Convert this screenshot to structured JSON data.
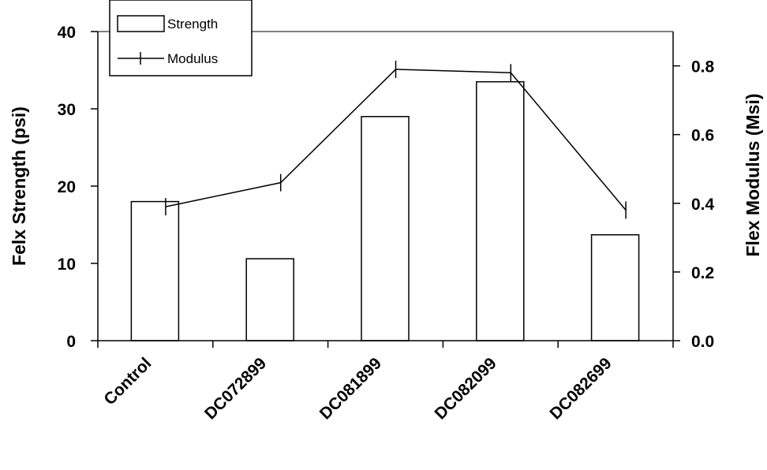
{
  "chart_data": {
    "type": "bar",
    "categories": [
      "Control",
      "DC072899",
      "DC081899",
      "DC082099",
      "DC082699"
    ],
    "series": [
      {
        "name": "Strength",
        "type": "bar",
        "axis": "left",
        "values": [
          18,
          10.6,
          29,
          33.5,
          13.7
        ]
      },
      {
        "name": "Modulus",
        "type": "line",
        "axis": "right",
        "values": [
          0.39,
          0.46,
          0.79,
          0.78,
          0.38
        ]
      }
    ],
    "ylabel_left": "Felx Strength (psi)",
    "ylabel_right": "Flex Modulus (Msi)",
    "ylim_left": [
      0,
      40
    ],
    "ylim_right": [
      0,
      0.9
    ],
    "yticks_left": [
      "0",
      "10",
      "20",
      "30",
      "40"
    ],
    "yticks_right": [
      "0.0",
      "0.2",
      "0.4",
      "0.6",
      "0.8"
    ],
    "legend_position": "top-left",
    "grid": false
  }
}
